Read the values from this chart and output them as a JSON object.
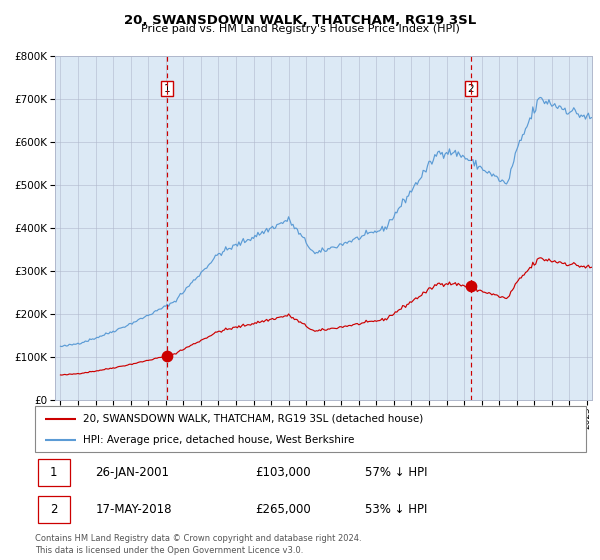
{
  "title": "20, SWANSDOWN WALK, THATCHAM, RG19 3SL",
  "subtitle": "Price paid vs. HM Land Registry's House Price Index (HPI)",
  "sale1_year": 2001.07,
  "sale1_price": 103000,
  "sale2_year": 2018.38,
  "sale2_price": 265000,
  "legend_line1": "20, SWANSDOWN WALK, THATCHAM, RG19 3SL (detached house)",
  "legend_line2": "HPI: Average price, detached house, West Berkshire",
  "footnote1": "Contains HM Land Registry data © Crown copyright and database right 2024.",
  "footnote2": "This data is licensed under the Open Government Licence v3.0.",
  "table1_num": "1",
  "table1_date": "26-JAN-2001",
  "table1_price": "£103,000",
  "table1_hpi": "57% ↓ HPI",
  "table2_num": "2",
  "table2_date": "17-MAY-2018",
  "table2_price": "£265,000",
  "table2_hpi": "53% ↓ HPI",
  "hpi_color": "#5b9bd5",
  "price_color": "#cc0000",
  "bg_color": "#dce9f5",
  "grid_color": "#b0b8cc",
  "dashed_color": "#cc0000",
  "ylim_max": 800000,
  "ylim_min": 0,
  "start_year": 1995,
  "end_year": 2025.3
}
